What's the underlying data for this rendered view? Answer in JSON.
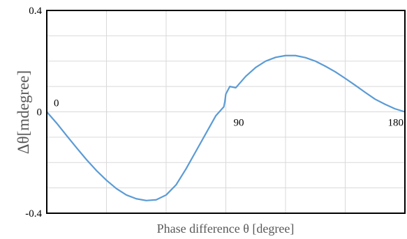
{
  "chart_data": {
    "type": "line",
    "title": "",
    "xlabel": "Phase difference θ [degree]",
    "ylabel": "Δθ[mdegree]",
    "xlim": [
      0,
      180
    ],
    "ylim": [
      -0.4,
      0.4
    ],
    "x_gridlines": [
      0,
      30,
      60,
      90,
      120,
      150,
      180
    ],
    "y_gridlines": [
      -0.4,
      -0.3,
      -0.2,
      -0.1,
      0,
      0.1,
      0.2,
      0.3,
      0.4
    ],
    "x_tick_labels": [
      "0",
      "90",
      "180"
    ],
    "y_tick_labels": [
      "0.4",
      "0",
      "-0.4"
    ],
    "grid": true,
    "legend": "none",
    "series": [
      {
        "color": "#5b9bd5",
        "x": [
          0,
          5,
          10,
          15,
          20,
          25,
          30,
          35,
          40,
          45,
          50,
          55,
          60,
          65,
          70,
          75,
          80,
          85,
          89,
          89.5,
          90,
          92,
          95,
          100,
          105,
          110,
          115,
          120,
          125,
          130,
          135,
          140,
          145,
          150,
          155,
          160,
          165,
          170,
          175,
          180
        ],
        "y": [
          0,
          -0.045,
          -0.094,
          -0.142,
          -0.189,
          -0.232,
          -0.27,
          -0.303,
          -0.328,
          -0.343,
          -0.35,
          -0.347,
          -0.328,
          -0.288,
          -0.225,
          -0.155,
          -0.085,
          -0.015,
          0.02,
          0.04,
          0.07,
          0.1,
          0.095,
          0.14,
          0.175,
          0.2,
          0.215,
          0.222,
          0.222,
          0.214,
          0.2,
          0.18,
          0.158,
          0.132,
          0.105,
          0.077,
          0.05,
          0.03,
          0.012,
          0
        ]
      }
    ]
  }
}
